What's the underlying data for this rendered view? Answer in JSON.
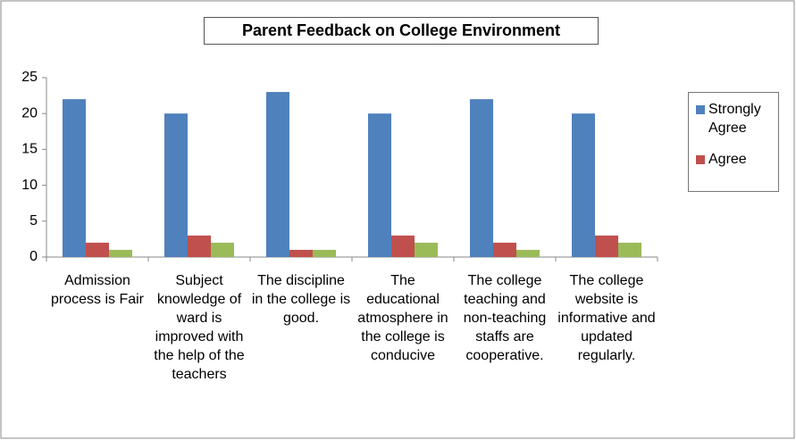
{
  "chart_data": {
    "type": "bar",
    "title": "Parent Feedback on College Environment",
    "categories": [
      "Admission process is Fair",
      "Subject knowledge of ward is improved with the help of the teachers",
      "The discipline in the college is good.",
      "The educational atmosphere in the college is conducive",
      "The college teaching and non-teaching staffs are cooperative.",
      "The college website is informative and updated regularly."
    ],
    "series": [
      {
        "name": "Strongly Agree",
        "color": "#4f81bd",
        "values": [
          22,
          20,
          23,
          20,
          22,
          20
        ]
      },
      {
        "name": "Agree",
        "color": "#c0504d",
        "values": [
          2,
          3,
          1,
          3,
          2,
          3
        ]
      },
      {
        "color": "#9bbb59",
        "values": [
          1,
          2,
          1,
          2,
          1,
          2
        ]
      }
    ],
    "ylim": [
      0,
      25
    ],
    "yticks": [
      0,
      5,
      10,
      15,
      20,
      25
    ],
    "grid": false,
    "legend": "right"
  }
}
